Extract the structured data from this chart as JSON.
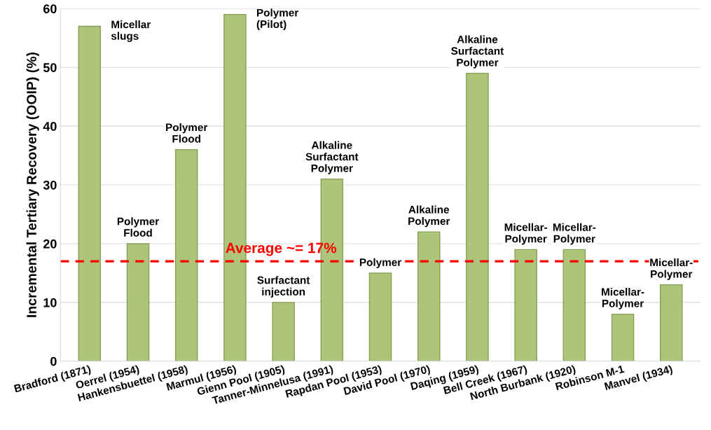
{
  "chart_data": {
    "type": "bar",
    "ylabel": "Incremental Tertiary Recovery (OOIP) (%)",
    "categories": [
      "Bradford (1871)",
      "Oerrel (1954)",
      "Hankensbuettel (1958)",
      "Marmul (1956)",
      "Gienn Pool (1905)",
      "Tanner-Minnelusa (1991)",
      "Rapdan Pool (1953)",
      "David Pool (1970)",
      "Daqing (1959)",
      "Bell Creek (1967)",
      "North Burbank (1920)",
      "Robinson M-1",
      "Manvel (1934)"
    ],
    "values": [
      57,
      20,
      36,
      59,
      10,
      31,
      15,
      22,
      49,
      19,
      19,
      8,
      13
    ],
    "color": "#adc57a",
    "ylim": [
      0,
      60
    ],
    "yticks": [
      0,
      10,
      20,
      30,
      40,
      50,
      60
    ],
    "grid": "y",
    "ref_lines": [
      {
        "axis": "y",
        "value": 17,
        "label": "Average ~= 17%",
        "color": "#ff0000",
        "line_style": "dashed"
      }
    ],
    "annotations": [
      {
        "text": "Micellar\nslugs",
        "x": "Bradford (1871)",
        "y": 57
      },
      {
        "text": "Polymer\nFlood",
        "x": "Oerrel (1954)",
        "y": 20
      },
      {
        "text": "Polymer\nFlood",
        "x": "Hankensbuettel (1958)",
        "y": 36
      },
      {
        "text": "Polymer\n(Pilot)",
        "x": "Marmul (1956)",
        "y": 59
      },
      {
        "text": "Surfactant\ninjection",
        "x": "Gienn Pool (1905)",
        "y": 10
      },
      {
        "text": "Alkaline\nSurfactant\nPolymer",
        "x": "Tanner-Minnelusa (1991)",
        "y": 31
      },
      {
        "text": "Polymer",
        "x": "Rapdan Pool (1953)",
        "y": 15
      },
      {
        "text": "Alkaline\nPolymer",
        "x": "David Pool (1970)",
        "y": 22
      },
      {
        "text": "Alkaline\nSurfactant\nPolymer",
        "x": "Daqing (1959)",
        "y": 49
      },
      {
        "text": "Micellar-\nPolymer",
        "x": "Bell Creek (1967)",
        "y": 19
      },
      {
        "text": "Micellar-\nPolymer",
        "x": "North Burbank (1920)",
        "y": 19
      },
      {
        "text": "Micellar-\nPolymer",
        "x": "Robinson M-1",
        "y": 8
      },
      {
        "text": "Micellar-\nPolymer",
        "x": "Manvel (1934)",
        "y": 13
      }
    ]
  }
}
